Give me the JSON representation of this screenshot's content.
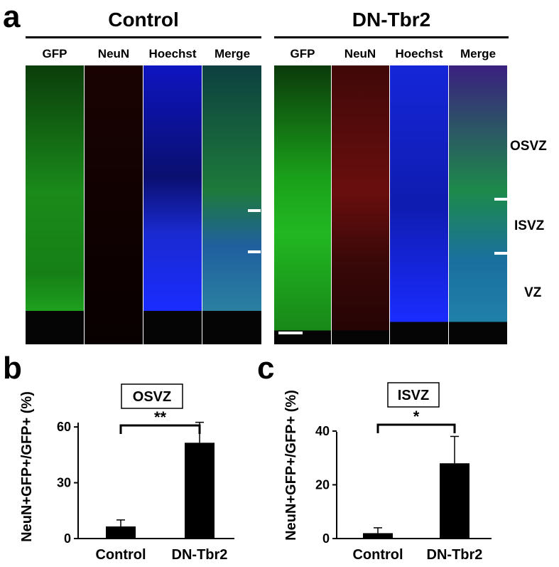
{
  "panel_a": {
    "letter": "a",
    "groups": [
      {
        "title": "Control",
        "columns": [
          "GFP",
          "NeuN",
          "Hoechst",
          "Merge"
        ]
      },
      {
        "title": "DN-Tbr2",
        "columns": [
          "GFP",
          "NeuN",
          "Hoechst",
          "Merge"
        ]
      }
    ],
    "zones": [
      "OSVZ",
      "ISVZ",
      "VZ"
    ],
    "channel_colors": {
      "GFP": "#1fd21f",
      "NeuN": "#e01010",
      "Hoechst": "#1a2cff",
      "background": "#050505"
    }
  },
  "chart_data": [
    {
      "panel": "b",
      "type": "bar",
      "region_label": "OSVZ",
      "ylabel": "NeuN+GFP+/GFP+ (%)",
      "categories": [
        "Control",
        "DN-Tbr2"
      ],
      "values": [
        6.5,
        51.5
      ],
      "errors": [
        3.5,
        11
      ],
      "ylim": [
        0,
        70
      ],
      "yticks": [
        0,
        30,
        60
      ],
      "significance": "**",
      "bar_color": "#000000"
    },
    {
      "panel": "c",
      "type": "bar",
      "region_label": "ISVZ",
      "ylabel": "NeuN+GFP+/GFP+ (%)",
      "categories": [
        "Control",
        "DN-Tbr2"
      ],
      "values": [
        2,
        28
      ],
      "errors": [
        2,
        10
      ],
      "ylim": [
        0,
        45
      ],
      "yticks": [
        0,
        20,
        40
      ],
      "significance": "*",
      "bar_color": "#000000"
    }
  ]
}
